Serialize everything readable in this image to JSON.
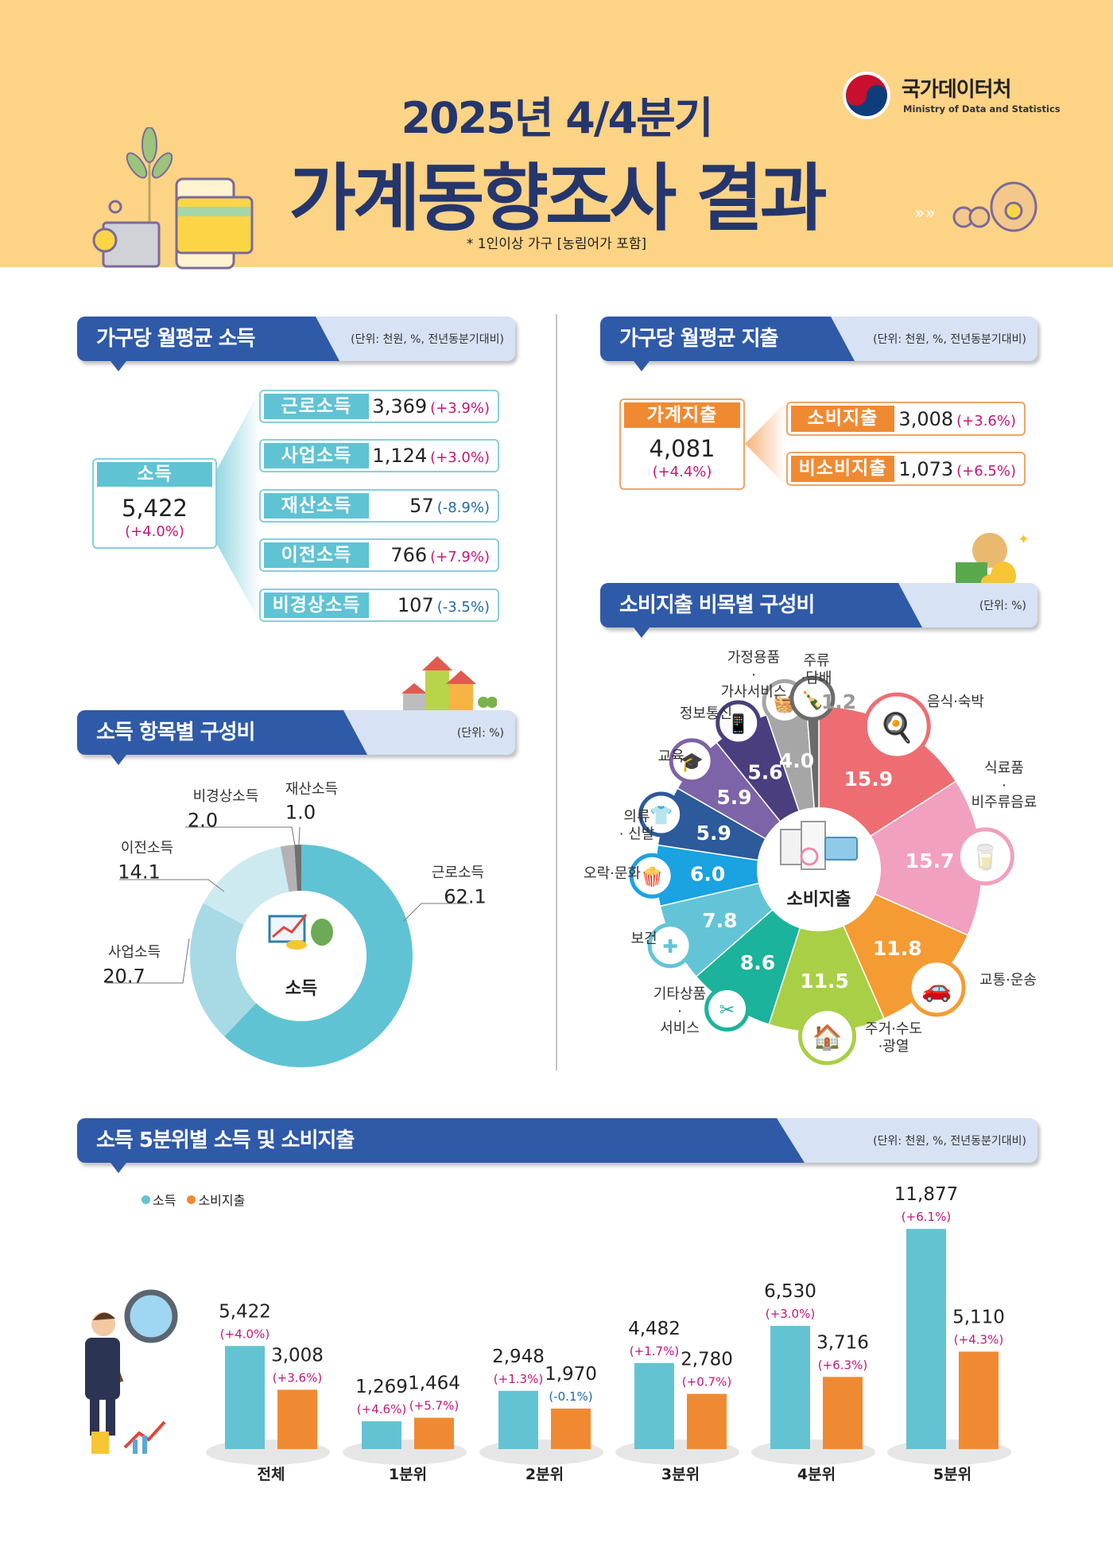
{
  "header": {
    "title_year": "2025년 4/4분기",
    "title_main": "가계동향조사 결과",
    "note": "* 1인이상 가구 [농림어가 포함]",
    "logo_name": "국가데이터처",
    "logo_sub": "Ministry of Data and Statistics"
  },
  "income": {
    "title": "가구당 월평균 소득",
    "unit": "(단위: 천원, %, 전년동분기대비)",
    "total": {
      "label": "소득",
      "value": "5,422",
      "change": "(+4.0%)"
    },
    "items": [
      {
        "label": "근로소득",
        "value": "3,369",
        "change": "(+3.9%)"
      },
      {
        "label": "사업소득",
        "value": "1,124",
        "change": "(+3.0%)"
      },
      {
        "label": "재산소득",
        "value": "57",
        "change": "(-8.9%)"
      },
      {
        "label": "이전소득",
        "value": "766",
        "change": "(+7.9%)"
      },
      {
        "label": "비경상소득",
        "value": "107",
        "change": "(-3.5%)"
      }
    ]
  },
  "spending": {
    "title": "가구당 월평균 지출",
    "unit": "(단위: 천원, %, 전년동분기대비)",
    "total": {
      "label": "가계지출",
      "value": "4,081",
      "change": "(+4.4%)"
    },
    "items": [
      {
        "label": "소비지출",
        "value": "3,008",
        "change": "(+3.6%)"
      },
      {
        "label": "비소비지출",
        "value": "1,073",
        "change": "(+6.5%)"
      }
    ]
  },
  "income_comp": {
    "title": "소득 항목별 구성비",
    "unit": "(단위: %)"
  },
  "consumption_comp": {
    "title": "소비지출 비목별 구성비",
    "unit": "(단위: %)"
  },
  "quintile": {
    "title": "소득 5분위별 소득 및 소비지출",
    "unit": "(단위: 천원, %, 전년동분기대비)"
  },
  "colors": {
    "navy": "#25366d",
    "header_blue": "#2f5aa8",
    "teal": "#5fc3d4",
    "orange": "#f08a32",
    "positive": "#c2177d",
    "negative": "#1e6aa8",
    "band": "#fdd386"
  },
  "chart_data": [
    {
      "type": "pie",
      "donut": true,
      "center_label": "소득",
      "categories": [
        "근로소득",
        "사업소득",
        "이전소득",
        "비경상소득",
        "재산소득"
      ],
      "values": [
        62.1,
        20.7,
        14.1,
        2.0,
        1.0
      ],
      "value_labels": [
        "62.1",
        "20.7",
        "14.1",
        "2.0",
        "1.0"
      ],
      "colors": [
        "#5fc3d4",
        "#a7dae5",
        "#cdeaf1",
        "#b3b3b3",
        "#707070"
      ],
      "unit": "%"
    },
    {
      "type": "pie",
      "donut": true,
      "center_label": "소비지출",
      "categories": [
        "음식·숙박",
        "식료품\n·\n비주류음료",
        "교통·운송",
        "주거·수도\n·광열",
        "기타상품\n·\n서비스",
        "보건",
        "오락·문화",
        "의류\n· 신발",
        "교육",
        "정보통신",
        "가정용품\n·\n가사서비스",
        "주류\n·담배"
      ],
      "values": [
        15.9,
        15.7,
        11.8,
        11.5,
        8.6,
        7.8,
        6.0,
        5.9,
        5.9,
        5.6,
        4.0,
        1.2
      ],
      "value_labels": [
        "15.9",
        "15.7",
        "11.8",
        "11.5",
        "8.6",
        "7.8",
        "6.0",
        "5.9",
        "5.9",
        "5.6",
        "4.0",
        "1.2"
      ],
      "colors": [
        "#ee6d72",
        "#f2a0bf",
        "#f49b33",
        "#a9cf46",
        "#1bb39b",
        "#63c4d7",
        "#1aa2e1",
        "#2c5a9b",
        "#7d63a7",
        "#4a3e7e",
        "#a6a6a6",
        "#6b6b6b"
      ],
      "icons": [
        "food-plate-icon",
        "grocery-icon",
        "car-icon",
        "house-icon",
        "scissors-icon",
        "medical-kit-icon",
        "popcorn-icon",
        "clothing-icon",
        "graduation-cap-icon",
        "smartphone-icon",
        "washing-machine-icon",
        "bottle-icon"
      ],
      "unit": "%"
    },
    {
      "type": "bar",
      "categories": [
        "전체",
        "1분위",
        "2분위",
        "3분위",
        "4분위",
        "5분위"
      ],
      "series": [
        {
          "name": "소득",
          "color": "#63c3d3",
          "values": [
            5422,
            1269,
            2948,
            4482,
            6530,
            11877
          ],
          "changes": [
            "(+4.0%)",
            "(+4.6%)",
            "(+1.3%)",
            "(+1.7%)",
            "(+3.0%)",
            "(+6.1%)"
          ]
        },
        {
          "name": "소비지출",
          "color": "#f08a32",
          "values": [
            3008,
            1464,
            1970,
            2780,
            3716,
            5110
          ],
          "changes": [
            "(+3.6%)",
            "(+5.7%)",
            "(-0.1%)",
            "(+0.7%)",
            "(+6.3%)",
            "(+4.3%)"
          ]
        }
      ],
      "legend": "top-left",
      "unit": "천원"
    }
  ]
}
